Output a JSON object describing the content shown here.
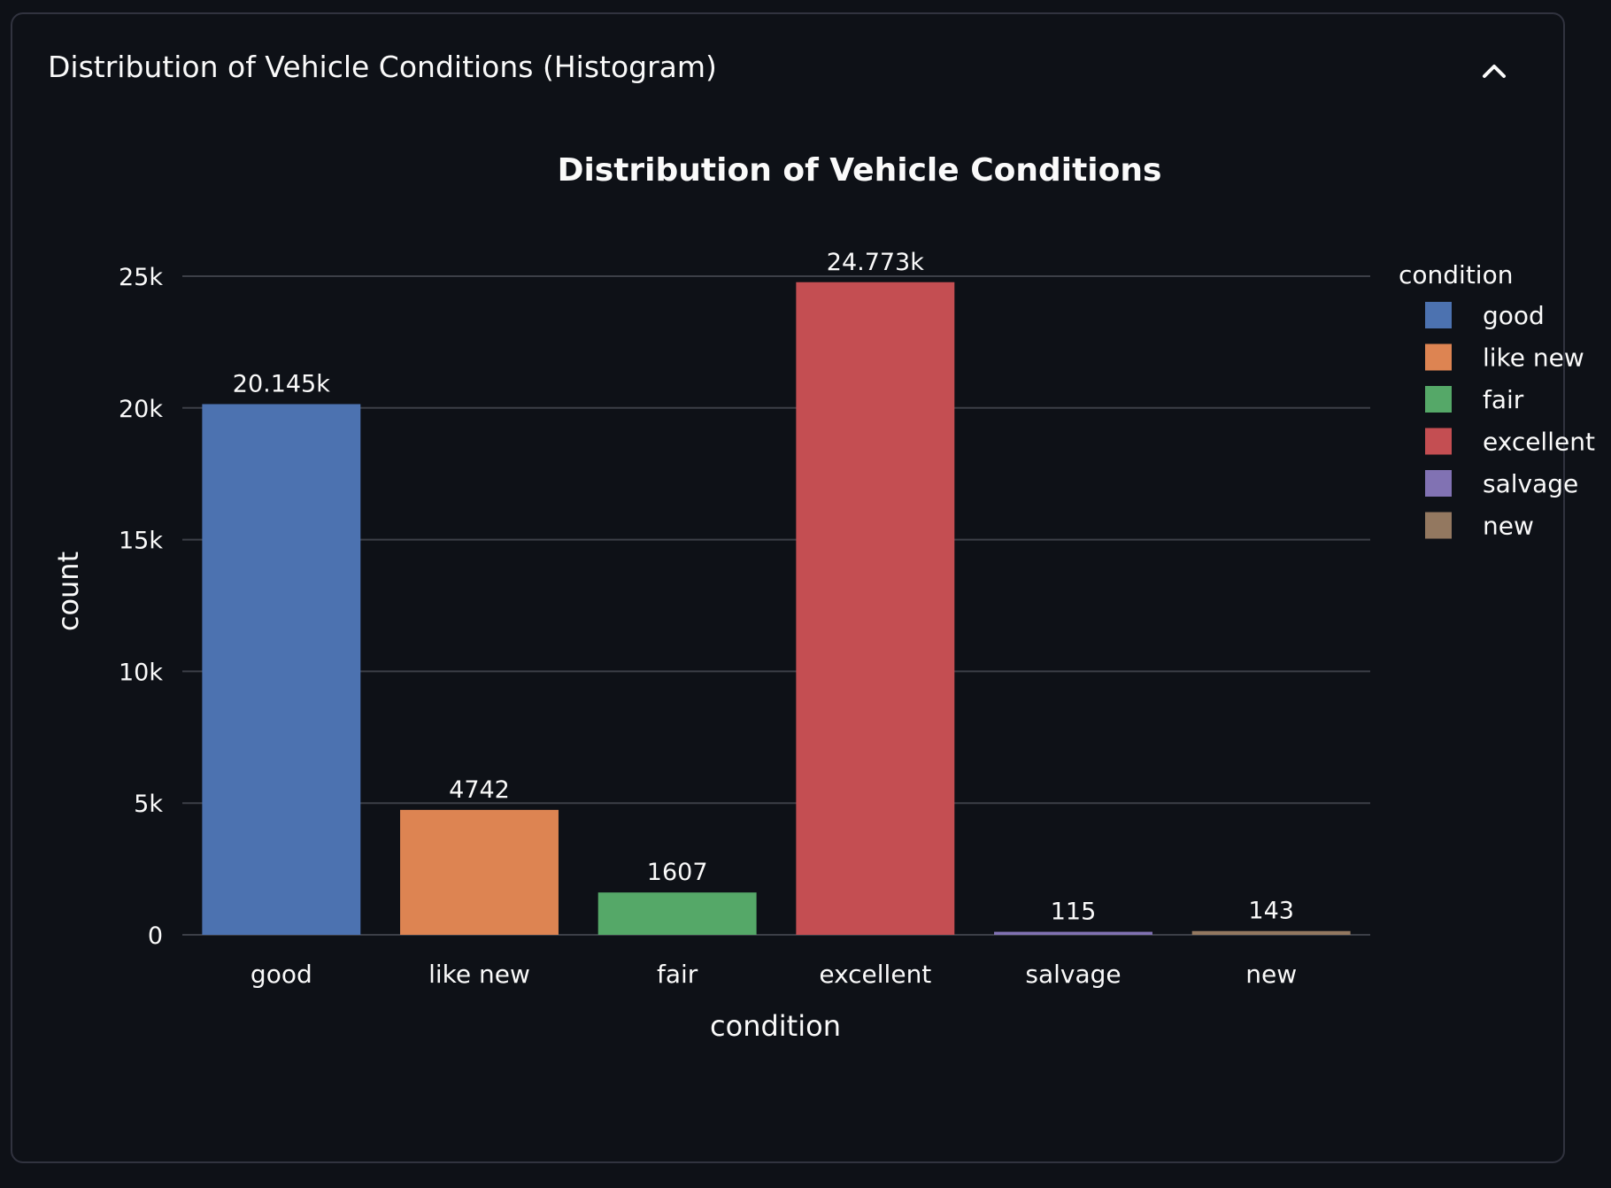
{
  "expander": {
    "title": "Distribution of Vehicle Conditions (Histogram)",
    "expanded": true,
    "icon": "chevron-up-icon"
  },
  "chart_data": {
    "type": "bar",
    "title": "Distribution of Vehicle Conditions",
    "xlabel": "condition",
    "ylabel": "count",
    "categories": [
      "good",
      "like new",
      "fair",
      "excellent",
      "salvage",
      "new"
    ],
    "values": [
      20145,
      4742,
      1607,
      24773,
      115,
      143
    ],
    "value_labels": [
      "20.145k",
      "4742",
      "1607",
      "24.773k",
      "115",
      "143"
    ],
    "colors": [
      "#4c72b0",
      "#dd8452",
      "#55a868",
      "#c44e52",
      "#8172b3",
      "#937860"
    ],
    "ylim": [
      0,
      25000
    ],
    "yticks": [
      0,
      5000,
      10000,
      15000,
      20000,
      25000
    ],
    "ytick_labels": [
      "0",
      "5k",
      "10k",
      "15k",
      "20k",
      "25k"
    ],
    "grid": true,
    "legend": {
      "title": "condition",
      "placement": "right",
      "entries": [
        "good",
        "like new",
        "fair",
        "excellent",
        "salvage",
        "new"
      ]
    }
  }
}
